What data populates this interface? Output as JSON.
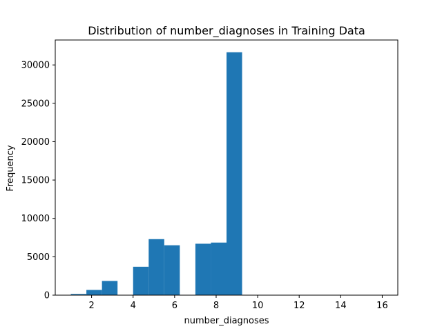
{
  "chart_data": {
    "type": "bar",
    "title": "Distribution of number_diagnoses in Training Data",
    "xlabel": "number_diagnoses",
    "ylabel": "Frequency",
    "xlim": [
      0.25,
      16.75
    ],
    "ylim": [
      0,
      33250
    ],
    "x_ticks": [
      2,
      4,
      6,
      8,
      10,
      12,
      14,
      16
    ],
    "y_ticks": [
      0,
      5000,
      10000,
      15000,
      20000,
      25000,
      30000
    ],
    "bins": [
      {
        "start": 1.0,
        "end": 1.75,
        "value": 150
      },
      {
        "start": 1.75,
        "end": 2.5,
        "value": 680
      },
      {
        "start": 2.5,
        "end": 3.25,
        "value": 1850
      },
      {
        "start": 3.25,
        "end": 4.0,
        "value": 0
      },
      {
        "start": 4.0,
        "end": 4.75,
        "value": 3700
      },
      {
        "start": 4.75,
        "end": 5.5,
        "value": 7300
      },
      {
        "start": 5.5,
        "end": 6.25,
        "value": 6500
      },
      {
        "start": 6.25,
        "end": 7.0,
        "value": 0
      },
      {
        "start": 7.0,
        "end": 7.75,
        "value": 6700
      },
      {
        "start": 7.75,
        "end": 8.5,
        "value": 6850
      },
      {
        "start": 8.5,
        "end": 9.25,
        "value": 31650
      },
      {
        "start": 9.25,
        "end": 10.0,
        "value": 30
      },
      {
        "start": 10.0,
        "end": 10.75,
        "value": 30
      },
      {
        "start": 10.75,
        "end": 11.5,
        "value": 30
      },
      {
        "start": 11.5,
        "end": 12.25,
        "value": 30
      },
      {
        "start": 12.25,
        "end": 13.0,
        "value": 20
      },
      {
        "start": 13.0,
        "end": 13.75,
        "value": 20
      },
      {
        "start": 13.75,
        "end": 14.5,
        "value": 20
      },
      {
        "start": 14.5,
        "end": 15.25,
        "value": 20
      },
      {
        "start": 15.25,
        "end": 16.0,
        "value": 20
      }
    ],
    "bar_color": "#1f77b4",
    "grid": false,
    "legend": "none"
  }
}
